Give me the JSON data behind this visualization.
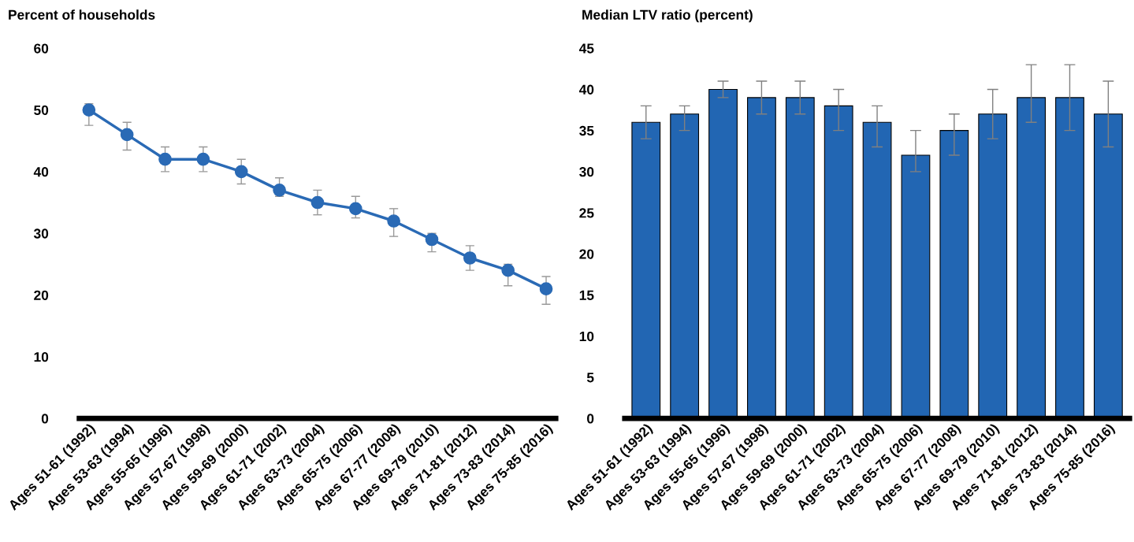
{
  "chart_data": [
    {
      "type": "line",
      "ylabel": "Percent of households",
      "categories": [
        "Ages 51-61 (1992)",
        "Ages 53-63 (1994)",
        "Ages 55-65 (1996)",
        "Ages 57-67 (1998)",
        "Ages 59-69 (2000)",
        "Ages 61-71 (2002)",
        "Ages 63-73 (2004)",
        "Ages 65-75 (2006)",
        "Ages 67-77 (2008)",
        "Ages 69-79 (2010)",
        "Ages 71-81 (2012)",
        "Ages 73-83 (2014)",
        "Ages 75-85 (2016)"
      ],
      "values": [
        50,
        46,
        42,
        42,
        40,
        37,
        35,
        34,
        32,
        29,
        26,
        24,
        21
      ],
      "errors": [
        [
          47.5,
          51
        ],
        [
          43.5,
          48
        ],
        [
          40,
          44
        ],
        [
          40,
          44
        ],
        [
          38,
          42
        ],
        [
          36,
          39
        ],
        [
          33,
          37
        ],
        [
          32.5,
          36
        ],
        [
          29.5,
          34
        ],
        [
          27,
          30
        ],
        [
          24,
          28
        ],
        [
          21.5,
          25
        ],
        [
          18.5,
          23
        ]
      ],
      "color": "#2a6ab5",
      "marker": "circle",
      "line_style": "solid",
      "ylim": [
        0,
        60
      ],
      "yticks": [
        0,
        10,
        20,
        30,
        40,
        50,
        60
      ],
      "grid": false
    },
    {
      "type": "bar",
      "ylabel": "Median LTV ratio (percent)",
      "categories": [
        "Ages 51-61 (1992)",
        "Ages 53-63 (1994)",
        "Ages 55-65 (1996)",
        "Ages 57-67 (1998)",
        "Ages 59-69 (2000)",
        "Ages 61-71 (2002)",
        "Ages 63-73 (2004)",
        "Ages 65-75 (2006)",
        "Ages 67-77 (2008)",
        "Ages 69-79 (2010)",
        "Ages 71-81 (2012)",
        "Ages 73-83 (2014)",
        "Ages 75-85 (2016)"
      ],
      "values": [
        36,
        37,
        40,
        39,
        39,
        38,
        36,
        32,
        35,
        37,
        39,
        39,
        37
      ],
      "errors": [
        [
          34,
          38
        ],
        [
          35,
          38
        ],
        [
          39,
          41
        ],
        [
          37,
          41
        ],
        [
          37,
          41
        ],
        [
          35,
          40
        ],
        [
          33,
          38
        ],
        [
          30,
          35
        ],
        [
          32,
          37
        ],
        [
          34,
          40
        ],
        [
          36,
          43
        ],
        [
          35,
          43
        ],
        [
          33,
          41
        ]
      ],
      "color": "#2266b3",
      "ylim": [
        0,
        45
      ],
      "yticks": [
        0,
        5,
        10,
        15,
        20,
        25,
        30,
        35,
        40,
        45
      ],
      "grid": false
    }
  ]
}
